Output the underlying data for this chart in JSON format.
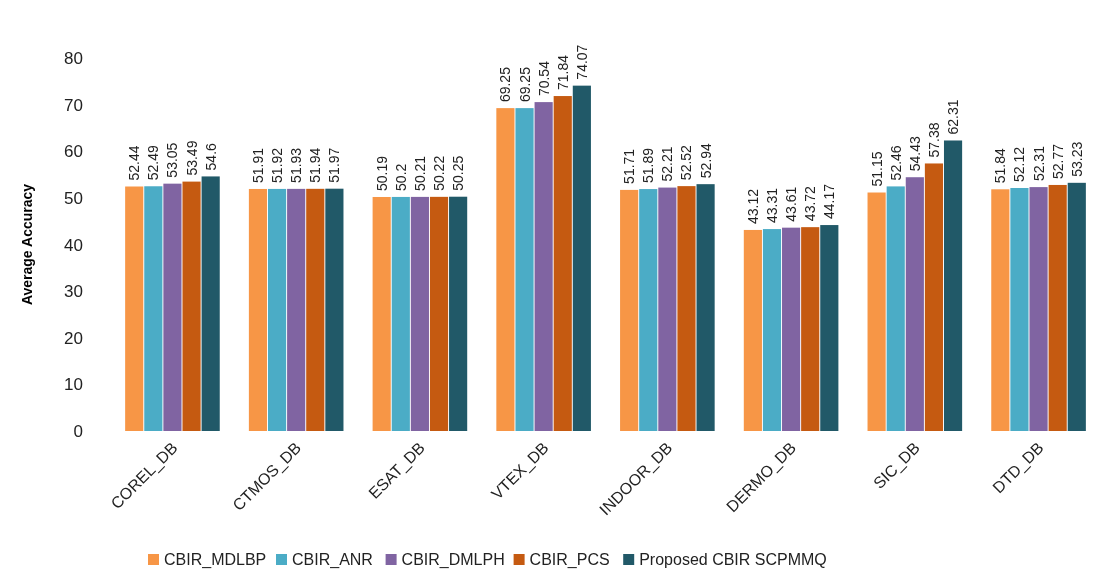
{
  "chart_data": {
    "type": "bar",
    "ylabel": "Average Accuracy",
    "categories": [
      "COREL_DB",
      "CTMOS_DB",
      "ESAT_DB",
      "VTEX_DB",
      "INDOOR_DB",
      "DERMO_DB",
      "SIC_DB",
      "DTD_DB"
    ],
    "series": [
      {
        "name": "CBIR_MDLBP",
        "color": "#f79646",
        "values": [
          52.44,
          51.91,
          50.19,
          69.25,
          51.71,
          43.12,
          51.15,
          51.84
        ]
      },
      {
        "name": "CBIR_ANR",
        "color": "#4bacc6",
        "values": [
          52.49,
          51.92,
          50.2,
          69.25,
          51.89,
          43.31,
          52.46,
          52.12
        ]
      },
      {
        "name": "CBIR_DMLPH",
        "color": "#8064a2",
        "values": [
          53.05,
          51.93,
          50.21,
          70.54,
          52.21,
          43.61,
          54.43,
          52.31
        ]
      },
      {
        "name": "CBIR_PCS",
        "color": "#c55a11",
        "values": [
          53.49,
          51.94,
          50.22,
          71.84,
          52.52,
          43.72,
          57.38,
          52.77
        ]
      },
      {
        "name": "Proposed CBIR SCPMMQ",
        "color": "#215968",
        "values": [
          54.6,
          51.97,
          50.25,
          74.07,
          52.94,
          44.17,
          62.31,
          53.23
        ]
      }
    ],
    "ylim": [
      0,
      80
    ],
    "yticks": [
      0,
      10,
      20,
      30,
      40,
      50,
      60,
      70,
      80
    ],
    "grid": false,
    "legend": "bottom",
    "data_labels": true
  }
}
